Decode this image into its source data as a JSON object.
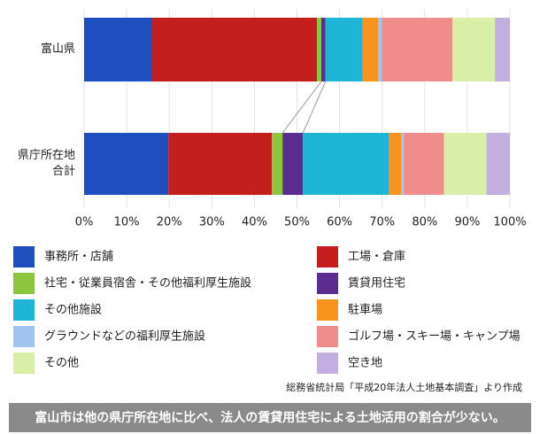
{
  "chart_data": {
    "type": "stacked-bar-horizontal",
    "categories": [
      "富山県",
      "県庁所在地\n合計"
    ],
    "series": [
      {
        "name": "事務所・店舗",
        "color": "#1f4fbf",
        "values": [
          15.8,
          19.8
        ]
      },
      {
        "name": "工場・倉庫",
        "color": "#c41e1e",
        "values": [
          38.9,
          24.3
        ]
      },
      {
        "name": "社宅・従業員宿舎・その他福利厚生施設",
        "color": "#8cc63f",
        "values": [
          1.0,
          2.5
        ]
      },
      {
        "name": "賃貸用住宅",
        "color": "#5b2d90",
        "values": [
          1.0,
          4.8
        ]
      },
      {
        "name": "その他施設",
        "color": "#1fb5d6",
        "values": [
          8.7,
          20.2
        ]
      },
      {
        "name": "駐車場",
        "color": "#f7941d",
        "values": [
          3.7,
          2.9
        ]
      },
      {
        "name": "グラウンドなどの福利厚生施設",
        "color": "#9fc4f0",
        "values": [
          0.8,
          0.6
        ]
      },
      {
        "name": "ゴルフ場・スキー場・キャンプ場",
        "color": "#f08c8c",
        "values": [
          16.6,
          9.4
        ]
      },
      {
        "name": "その他",
        "color": "#d9eea6",
        "values": [
          10.0,
          10.0
        ]
      },
      {
        "name": "空き地",
        "color": "#c3aee0",
        "values": [
          3.5,
          5.5
        ]
      }
    ],
    "xlim": [
      0,
      100
    ],
    "xticks": [
      {
        "value": 0,
        "label": "0%"
      },
      {
        "value": 10,
        "label": "10%"
      },
      {
        "value": 20,
        "label": "20%"
      },
      {
        "value": 30,
        "label": "30%"
      },
      {
        "value": 40,
        "label": "40%"
      },
      {
        "value": 50,
        "label": "50%"
      },
      {
        "value": 60,
        "label": "60%"
      },
      {
        "value": 70,
        "label": "70%"
      },
      {
        "value": 80,
        "label": "80%"
      },
      {
        "value": 90,
        "label": "90%"
      },
      {
        "value": 100,
        "label": "100%"
      }
    ],
    "grid": true,
    "source": "総務省統計局「平成20年法人土地基本調査」より作成",
    "conclusion": "富山市は他の県庁所在地に比べ、法人の賃貸用住宅による土地活用の割合が少ない。"
  }
}
